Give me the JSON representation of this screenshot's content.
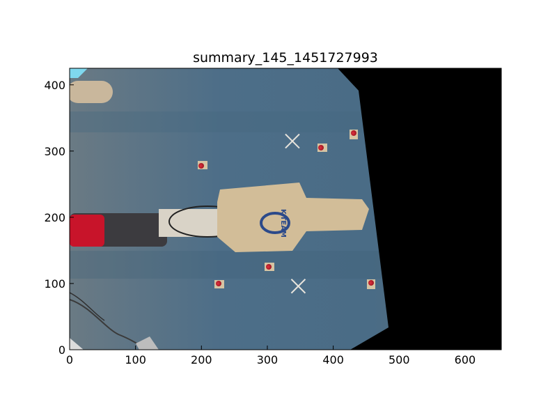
{
  "figure": {
    "title": "summary_145_1451727993"
  },
  "axes": {
    "x_ticks": [
      "0",
      "100",
      "200",
      "300",
      "400",
      "500",
      "600"
    ],
    "y_ticks": [
      "0",
      "100",
      "200",
      "300",
      "400"
    ],
    "xlim": [
      0,
      655
    ],
    "ylim": [
      0,
      425
    ],
    "grid": false
  },
  "image": {
    "markers": [
      {
        "label": "x",
        "x": 338,
        "y": 315
      },
      {
        "label": "x",
        "x": 347,
        "y": 96
      }
    ],
    "robot_logo": "K-TEAM",
    "background_color": "#4f6f87",
    "masked_region_color": "#000000"
  }
}
